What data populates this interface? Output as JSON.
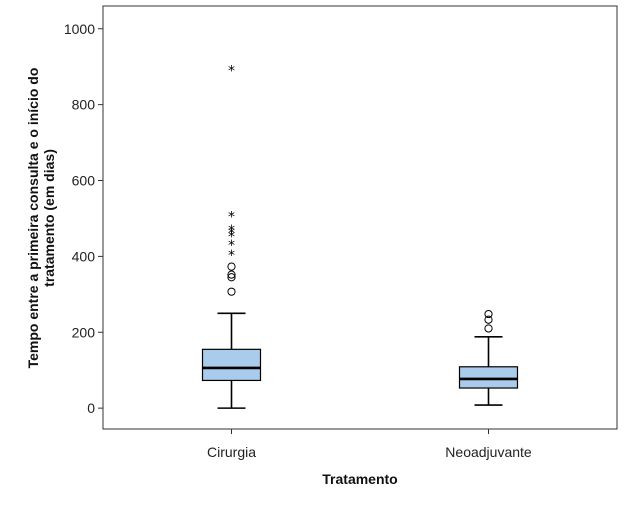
{
  "chart_data": {
    "type": "boxplot",
    "title": "",
    "xlabel": "Tratamento",
    "ylabel_lines": [
      "Tempo entre a primeira consulta e o início do",
      "tratamento (em dias)"
    ],
    "ylim": [
      -55,
      1060
    ],
    "yticks": [
      0,
      200,
      400,
      600,
      800,
      1000
    ],
    "ytick_labels": [
      "0",
      "200",
      "400",
      "600",
      "800",
      "1000"
    ],
    "categories": [
      "Cirurgia",
      "Neoadjuvante"
    ],
    "box_color": "#a9cbec",
    "series": [
      {
        "name": "Cirurgia",
        "whisker_low": 0,
        "q1": 73,
        "median": 106,
        "q3": 155,
        "whisker_high": 250,
        "outliers": [
          307,
          345,
          352,
          373
        ],
        "extremes": [
          403,
          430,
          453,
          462,
          470,
          505,
          890
        ]
      },
      {
        "name": "Neoadjuvante",
        "whisker_low": 8,
        "q1": 53,
        "median": 77,
        "q3": 109,
        "whisker_high": 188,
        "outliers": [
          210,
          233,
          248
        ],
        "extremes": []
      }
    ],
    "outlier_marker": "○",
    "extreme_marker": "*"
  }
}
